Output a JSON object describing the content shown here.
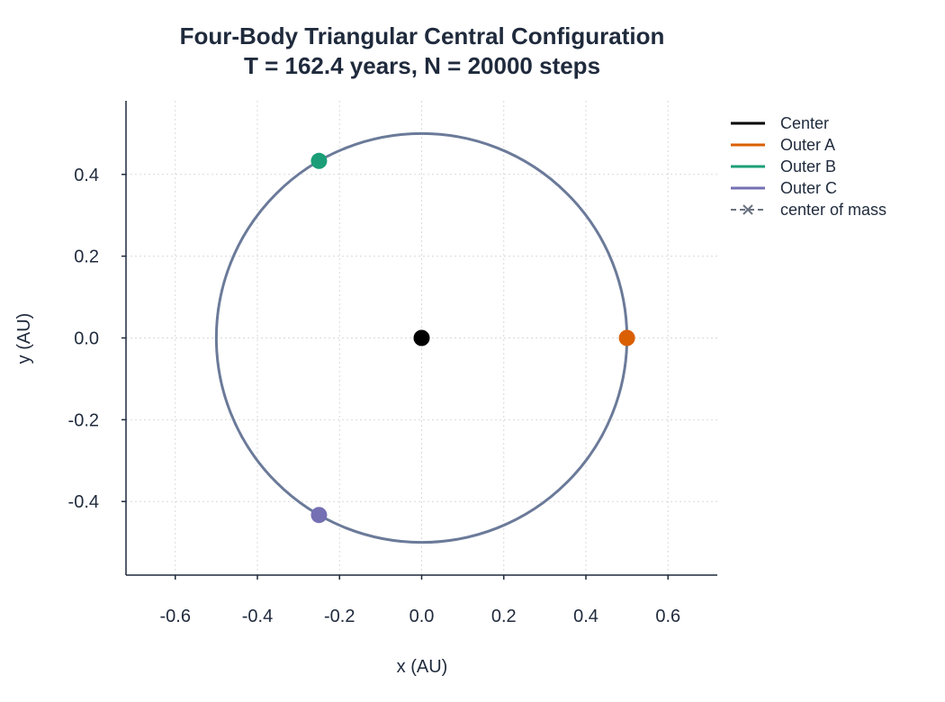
{
  "chart_data": {
    "type": "scatter",
    "title_line1": "Four-Body Triangular Central Configuration",
    "title_line2": "T = 162.4 years, N = 20000 steps",
    "xlabel": "x (AU)",
    "ylabel": "y (AU)",
    "xlim": [
      -0.72,
      0.72
    ],
    "ylim": [
      -0.58,
      0.58
    ],
    "xticks": [
      -0.6,
      -0.4,
      -0.2,
      0.0,
      0.2,
      0.4,
      0.6
    ],
    "xtick_labels": [
      "-0.6",
      "-0.4",
      "-0.2",
      "0.0",
      "0.2",
      "0.4",
      "0.6"
    ],
    "yticks": [
      0.4,
      0.2,
      0.0,
      -0.2,
      -0.4
    ],
    "ytick_labels": [
      "0.4",
      "0.2",
      "0.0",
      "-0.2",
      "-0.4"
    ],
    "grid": true,
    "legend_position": "outside-right",
    "orbit": {
      "center": [
        0.0,
        0.0
      ],
      "radius": 0.5,
      "color": "#6b7a99"
    },
    "bodies": [
      {
        "name": "Center",
        "x": 0.0,
        "y": 0.0,
        "color": "#000000"
      },
      {
        "name": "Outer A",
        "x": 0.5,
        "y": 0.0,
        "color": "#d95f02"
      },
      {
        "name": "Outer B",
        "x": -0.25,
        "y": 0.433,
        "color": "#1b9e77"
      },
      {
        "name": "Outer C",
        "x": -0.25,
        "y": -0.433,
        "color": "#7570b3"
      }
    ],
    "center_of_mass": {
      "name": "center of mass",
      "x": 0.0,
      "y": 0.0,
      "color": "#6b7280"
    }
  }
}
